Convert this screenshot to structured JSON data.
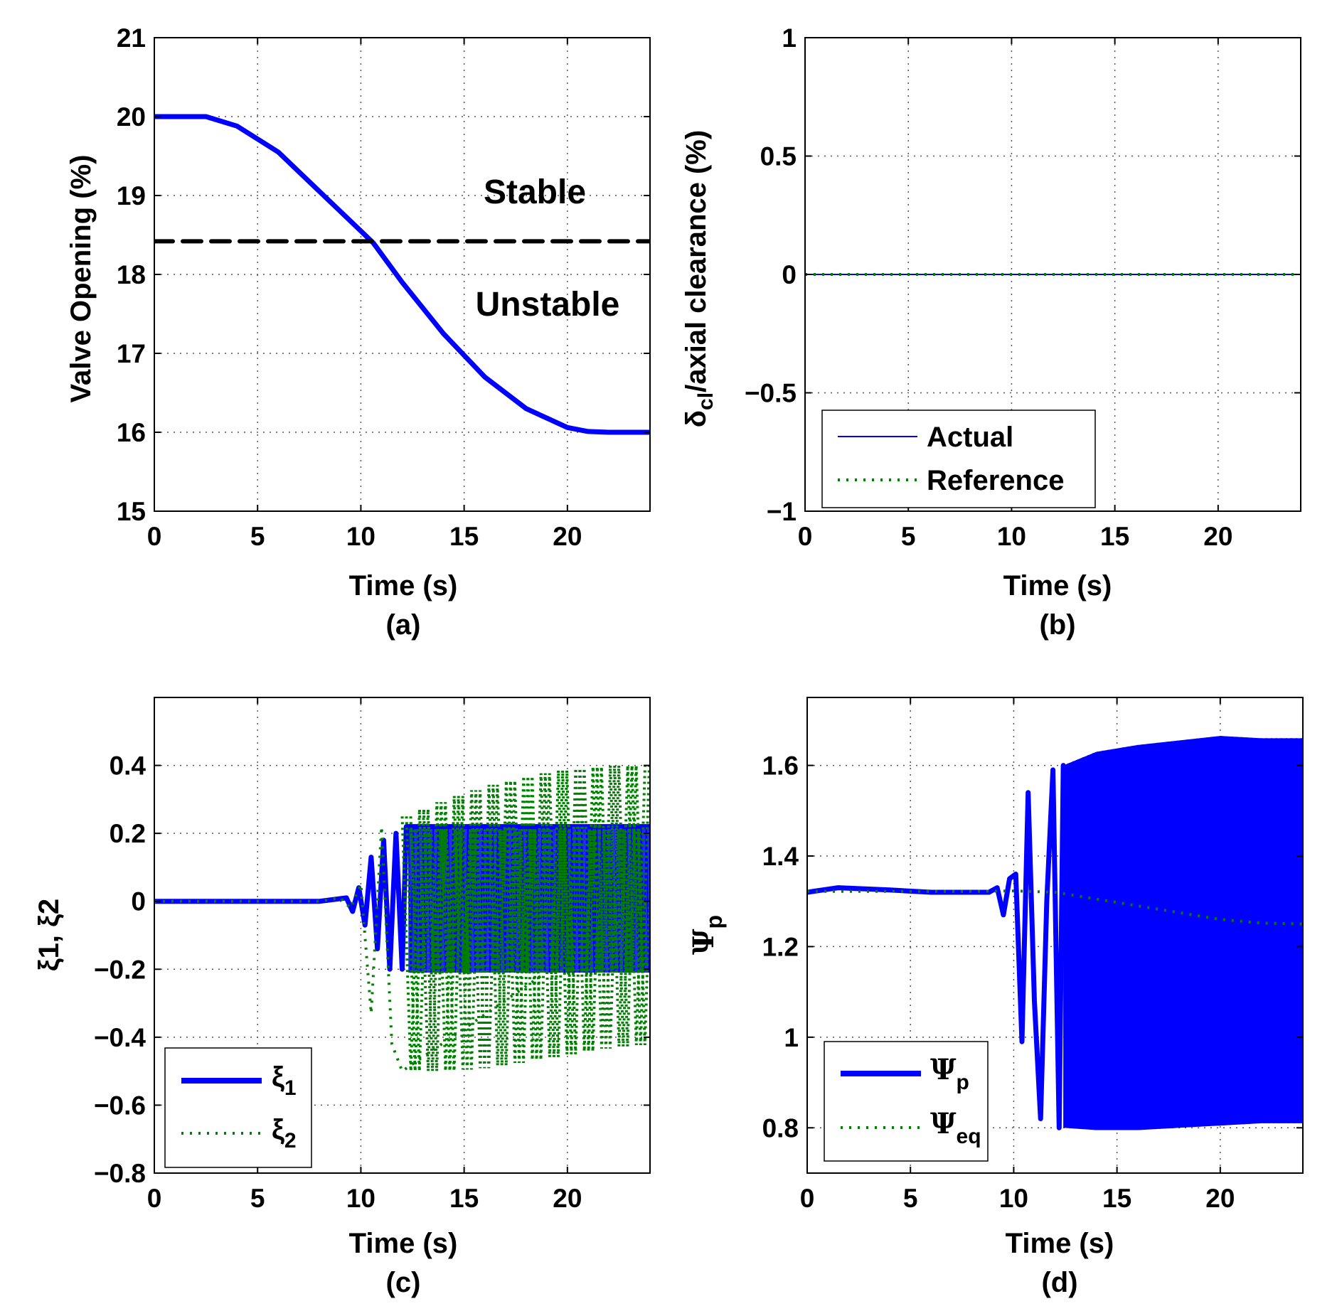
{
  "chart_data": [
    {
      "type": "line",
      "caption": "(a)",
      "xlabel": "Time (s)",
      "ylabel": "Valve Opening (%)",
      "xlim": [
        0,
        24
      ],
      "ylim": [
        15,
        21
      ],
      "xticks": [
        0,
        5,
        10,
        15,
        20
      ],
      "yticks": [
        15,
        16,
        17,
        18,
        19,
        20,
        21
      ],
      "grid": true,
      "series": [
        {
          "color": "#0000ff",
          "style": "solid-thick",
          "x": [
            0,
            2.5,
            4,
            6,
            8,
            10,
            10.6,
            12,
            14,
            16,
            18,
            20,
            21,
            22,
            24
          ],
          "y": [
            20,
            20,
            19.88,
            19.55,
            19.05,
            18.55,
            18.4,
            17.9,
            17.25,
            16.7,
            16.3,
            16.06,
            16.01,
            16,
            16
          ]
        },
        {
          "color": "#000000",
          "style": "dashed",
          "x": [
            0,
            24
          ],
          "y": [
            18.42,
            18.42
          ]
        }
      ],
      "annotations": [
        {
          "text": "Stable",
          "x": 18.5,
          "y": 18.97
        },
        {
          "text": "Unstable",
          "x": 18.9,
          "y": 17.56
        }
      ]
    },
    {
      "type": "line",
      "caption": "(b)",
      "xlabel": "Time (s)",
      "ylabel_main": "δ",
      "ylabel_sub": "cl",
      "ylabel_rest": "/axial clearance (%)",
      "xlim": [
        0,
        24
      ],
      "ylim": [
        -1,
        1
      ],
      "xticks": [
        0,
        5,
        10,
        15,
        20
      ],
      "yticks": [
        -1,
        -0.5,
        0,
        0.5,
        1
      ],
      "ytick_labels": [
        "−1",
        "−0.5",
        "0",
        "0.5",
        "1"
      ],
      "grid": true,
      "legend": {
        "position": "bottom-left",
        "entries": [
          "Actual",
          "Reference"
        ]
      },
      "series": [
        {
          "name": "Actual",
          "color": "#0000ff",
          "style": "solid-thin",
          "x": [
            0,
            24
          ],
          "y": [
            0,
            0
          ]
        },
        {
          "name": "Reference",
          "color": "#008000",
          "style": "dotted",
          "x": [
            0,
            24
          ],
          "y": [
            0,
            0
          ]
        }
      ]
    },
    {
      "type": "line",
      "caption": "(c)",
      "xlabel": "Time (s)",
      "ylabel": "ξ1, ξ2",
      "xlim": [
        0,
        24
      ],
      "ylim": [
        -0.8,
        0.6
      ],
      "xticks": [
        0,
        5,
        10,
        15,
        20
      ],
      "yticks": [
        -0.8,
        -0.6,
        -0.4,
        -0.2,
        0,
        0.2,
        0.4
      ],
      "ytick_labels": [
        "−0.8",
        "−0.6",
        "−0.4",
        "−0.2",
        "0",
        "0.2",
        "0.4"
      ],
      "grid": true,
      "legend": {
        "position": "bottom-left",
        "entries": [
          {
            "main": "ξ",
            "sub": "1"
          },
          {
            "main": "ξ",
            "sub": "2"
          }
        ]
      },
      "series": [
        {
          "name": "ξ1",
          "color": "#0000ff",
          "style": "solid-thick",
          "x": [
            0,
            8,
            9.3,
            9.6,
            9.9,
            10.2,
            10.5,
            10.8,
            11.1,
            11.4,
            11.7,
            12.0,
            12.2,
            24
          ],
          "y": [
            0,
            0,
            0.01,
            -0.03,
            0.04,
            -0.07,
            0.13,
            -0.14,
            0.18,
            -0.2,
            0.2,
            -0.2,
            0.22,
            0.22
          ],
          "band_from": 12.3,
          "band": [
            -0.21,
            0.22
          ]
        },
        {
          "name": "ξ2",
          "color": "#008000",
          "style": "dotted",
          "x": [
            0,
            8,
            9,
            9.5,
            10,
            10.5,
            11,
            11.5,
            12,
            24
          ],
          "y": [
            0,
            0,
            0.01,
            -0.02,
            0.05,
            -0.33,
            0.22,
            -0.42,
            -0.5,
            0
          ],
          "band_upper": {
            "x": [
              12,
              14,
              16,
              18,
              20,
              22,
              24
            ],
            "y": [
              0.25,
              0.3,
              0.34,
              0.37,
              0.39,
              0.4,
              0.4
            ]
          },
          "band_lower": {
            "x": [
              12,
              14,
              16,
              18,
              20,
              22,
              24
            ],
            "y": [
              -0.5,
              -0.5,
              -0.49,
              -0.47,
              -0.45,
              -0.43,
              -0.42
            ]
          }
        }
      ]
    },
    {
      "type": "line",
      "caption": "(d)",
      "xlabel": "Time (s)",
      "ylabel_main": "Ψ",
      "ylabel_sub": "p",
      "xlim": [
        0,
        24
      ],
      "ylim": [
        0.7,
        1.75
      ],
      "xticks": [
        0,
        5,
        10,
        15,
        20
      ],
      "yticks": [
        0.8,
        1,
        1.2,
        1.4,
        1.6
      ],
      "grid": true,
      "legend": {
        "position": "bottom-left",
        "entries": [
          {
            "main": "Ψ",
            "sub": "p"
          },
          {
            "main": "Ψ",
            "sub": "eq"
          }
        ]
      },
      "series": [
        {
          "name": "Ψp",
          "color": "#0000ff",
          "style": "solid-thick",
          "x": [
            0,
            1.5,
            4,
            6,
            8,
            8.8,
            9.2,
            9.5,
            9.8,
            10.1,
            10.4,
            10.7,
            11.0,
            11.3,
            11.6,
            11.9,
            12.2,
            12.4
          ],
          "y": [
            1.32,
            1.33,
            1.325,
            1.32,
            1.32,
            1.32,
            1.33,
            1.27,
            1.35,
            1.36,
            0.99,
            1.54,
            1.08,
            0.82,
            1.3,
            1.59,
            0.8,
            1.6
          ],
          "band_upper": {
            "x": [
              12.4,
              14,
              16,
              18,
              20,
              22,
              24
            ],
            "y": [
              1.6,
              1.63,
              1.645,
              1.655,
              1.665,
              1.66,
              1.66
            ]
          },
          "band_lower": {
            "x": [
              12.4,
              14,
              16,
              18,
              20,
              22,
              24
            ],
            "y": [
              0.8,
              0.795,
              0.795,
              0.8,
              0.805,
              0.81,
              0.81
            ]
          }
        },
        {
          "name": "Ψeq",
          "color": "#008000",
          "style": "dotted",
          "x": [
            0,
            4,
            8,
            10,
            12,
            14,
            16,
            18,
            20,
            22,
            24
          ],
          "y": [
            1.322,
            1.322,
            1.322,
            1.323,
            1.32,
            1.305,
            1.29,
            1.275,
            1.26,
            1.252,
            1.25
          ]
        }
      ]
    }
  ]
}
